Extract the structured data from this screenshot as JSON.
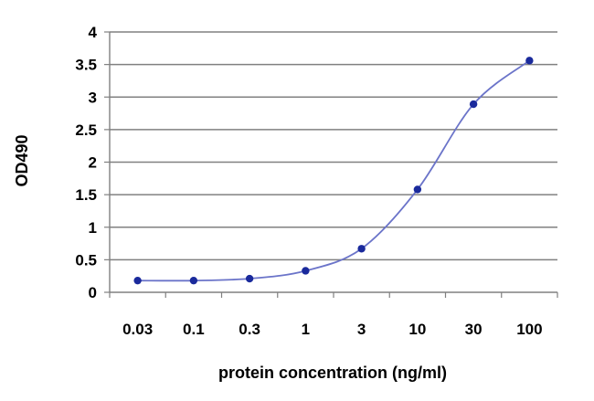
{
  "chart_data": {
    "type": "line",
    "title": "",
    "xlabel": "protein concentration (ng/ml)",
    "ylabel": "OD490",
    "categories": [
      "0.03",
      "0.1",
      "0.3",
      "1",
      "3",
      "10",
      "30",
      "100"
    ],
    "y_ticks": [
      "0",
      "0.5",
      "1",
      "1.5",
      "2",
      "2.5",
      "3",
      "3.5",
      "4"
    ],
    "ylim": [
      0,
      4
    ],
    "grid": "horizontal",
    "legend": "none",
    "series": [
      {
        "values": [
          0.18,
          0.18,
          0.21,
          0.33,
          0.67,
          1.58,
          2.89,
          3.56
        ]
      }
    ],
    "colors": {
      "line": "#6b74c9",
      "marker": "#1a2a9c",
      "grid": "#808080",
      "axis": "#808080"
    }
  }
}
